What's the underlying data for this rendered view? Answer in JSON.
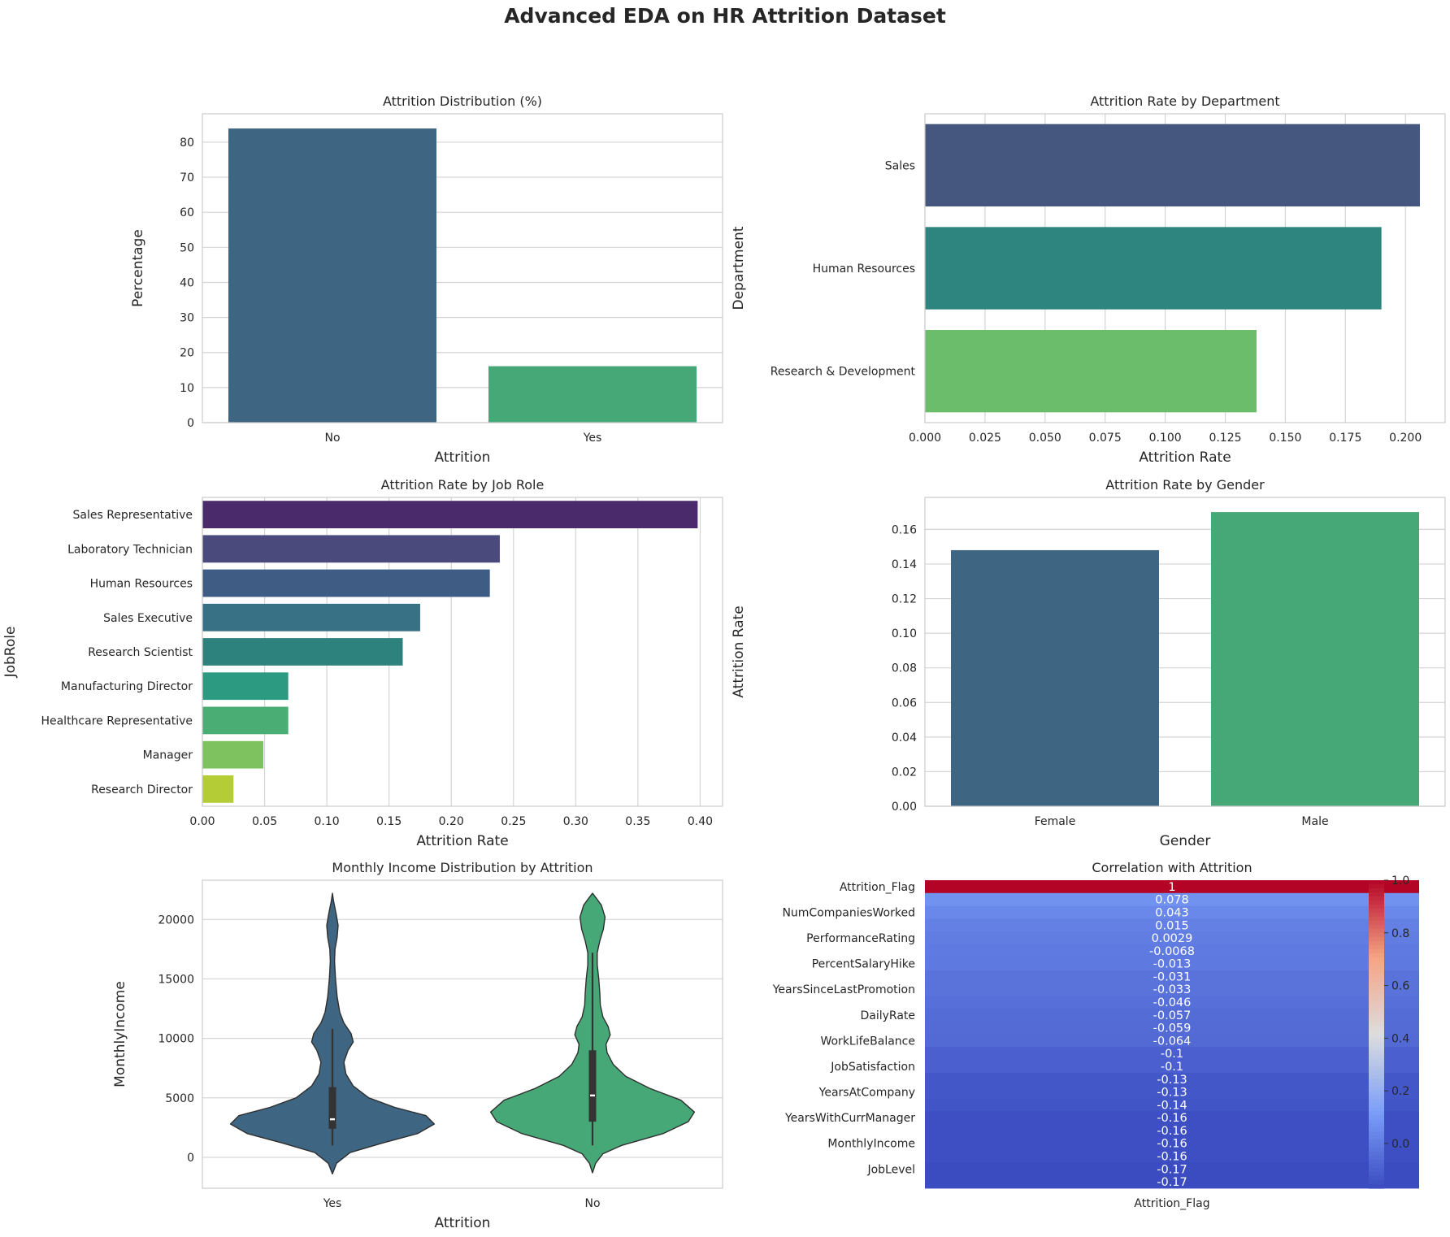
{
  "figure": {
    "title": "Advanced EDA on HR Attrition Dataset"
  },
  "chart_data": [
    {
      "id": "attrition-distribution",
      "type": "bar",
      "title": "Attrition Distribution (%)",
      "xlabel": "Attrition",
      "ylabel": "Percentage",
      "categories": [
        "No",
        "Yes"
      ],
      "values": [
        83.9,
        16.1
      ],
      "ylim": [
        0,
        88.1
      ],
      "yticks": [
        0,
        10,
        20,
        30,
        40,
        50,
        60,
        70,
        80
      ],
      "colors": [
        "#3e6581",
        "#46a876"
      ],
      "grid": true
    },
    {
      "id": "attrition-by-department",
      "type": "bar",
      "orientation": "horizontal",
      "title": "Attrition Rate by Department",
      "xlabel": "Attrition Rate",
      "ylabel": "Department",
      "categories": [
        "Sales",
        "Human Resources",
        "Research & Development"
      ],
      "values": [
        0.206,
        0.19,
        0.138
      ],
      "xlim": [
        0,
        0.2165
      ],
      "xticks": [
        0.0,
        0.025,
        0.05,
        0.075,
        0.1,
        0.125,
        0.15,
        0.175,
        0.2
      ],
      "tick_decimals": 3,
      "colors": [
        "#46577f",
        "#2e847e",
        "#6bbd6c"
      ],
      "grid": true
    },
    {
      "id": "attrition-by-job-role",
      "type": "bar",
      "orientation": "horizontal",
      "title": "Attrition Rate by Job Role",
      "xlabel": "Attrition Rate",
      "ylabel": "JobRole",
      "categories": [
        "Sales Representative",
        "Laboratory Technician",
        "Human Resources",
        "Sales Executive",
        "Research Scientist",
        "Manufacturing Director",
        "Healthcare Representative",
        "Manager",
        "Research Director"
      ],
      "values": [
        0.398,
        0.239,
        0.231,
        0.175,
        0.161,
        0.069,
        0.069,
        0.049,
        0.025
      ],
      "xlim": [
        0,
        0.418
      ],
      "xticks": [
        0.0,
        0.05,
        0.1,
        0.15,
        0.2,
        0.25,
        0.3,
        0.35,
        0.4
      ],
      "tick_decimals": 2,
      "colors": [
        "#4a2a6a",
        "#4a4a7d",
        "#3f5c84",
        "#387185",
        "#2e827e",
        "#2b9a80",
        "#4aad73",
        "#7dc25e",
        "#b4cc36"
      ],
      "grid": true
    },
    {
      "id": "attrition-by-gender",
      "type": "bar",
      "title": "Attrition Rate by Gender",
      "xlabel": "Gender",
      "ylabel": "Attrition Rate",
      "categories": [
        "Female",
        "Male"
      ],
      "values": [
        0.148,
        0.17
      ],
      "ylim": [
        0,
        0.1785
      ],
      "yticks": [
        0.0,
        0.02,
        0.04,
        0.06,
        0.08,
        0.1,
        0.12,
        0.14,
        0.16
      ],
      "tick_decimals": 2,
      "colors": [
        "#3e6581",
        "#46a876"
      ],
      "grid": true
    },
    {
      "id": "income-violin",
      "type": "violin",
      "title": "Monthly Income Distribution by Attrition",
      "xlabel": "Attrition",
      "ylabel": "MonthlyIncome",
      "categories": [
        "Yes",
        "No"
      ],
      "colors": [
        "#3e6581",
        "#46a876"
      ],
      "ylim": [
        -2600,
        23300
      ],
      "yticks": [
        0,
        5000,
        10000,
        15000,
        20000
      ],
      "violins": [
        {
          "name": "Yes",
          "profile": [
            [
              -1400,
              0
            ],
            [
              -500,
              0.04
            ],
            [
              400,
              0.17
            ],
            [
              1200,
              0.48
            ],
            [
              2000,
              0.82
            ],
            [
              2800,
              0.98
            ],
            [
              3500,
              0.9
            ],
            [
              4200,
              0.6
            ],
            [
              5000,
              0.35
            ],
            [
              6000,
              0.2
            ],
            [
              7000,
              0.13
            ],
            [
              8000,
              0.11
            ],
            [
              9000,
              0.15
            ],
            [
              9700,
              0.2
            ],
            [
              10400,
              0.18
            ],
            [
              11300,
              0.11
            ],
            [
              12200,
              0.07
            ],
            [
              13500,
              0.045
            ],
            [
              15000,
              0.03
            ],
            [
              16500,
              0.02
            ],
            [
              17500,
              0.025
            ],
            [
              18500,
              0.045
            ],
            [
              19500,
              0.055
            ],
            [
              20500,
              0.035
            ],
            [
              21500,
              0.012
            ],
            [
              22200,
              0
            ]
          ],
          "q1": 2400,
          "median": 3200,
          "q3": 5900,
          "whisker_low": 1000,
          "whisker_high": 10800
        },
        {
          "name": "No",
          "profile": [
            [
              -1300,
              0
            ],
            [
              -500,
              0.03
            ],
            [
              300,
              0.1
            ],
            [
              1000,
              0.28
            ],
            [
              2000,
              0.68
            ],
            [
              3000,
              0.92
            ],
            [
              3800,
              0.98
            ],
            [
              4800,
              0.85
            ],
            [
              5800,
              0.55
            ],
            [
              6800,
              0.32
            ],
            [
              7800,
              0.2
            ],
            [
              8800,
              0.14
            ],
            [
              9500,
              0.13
            ],
            [
              10300,
              0.17
            ],
            [
              11000,
              0.15
            ],
            [
              11800,
              0.1
            ],
            [
              12800,
              0.075
            ],
            [
              13800,
              0.07
            ],
            [
              15000,
              0.06
            ],
            [
              16200,
              0.045
            ],
            [
              17200,
              0.045
            ],
            [
              18200,
              0.07
            ],
            [
              19200,
              0.105
            ],
            [
              20200,
              0.12
            ],
            [
              21200,
              0.085
            ],
            [
              21800,
              0.035
            ],
            [
              22200,
              0
            ]
          ],
          "q1": 3000,
          "median": 5200,
          "q3": 9000,
          "whisker_low": 1000,
          "whisker_high": 17200
        }
      ],
      "grid": true
    },
    {
      "id": "correlation-heatmap",
      "type": "heatmap",
      "title": "Correlation with Attrition",
      "column": "Attrition_Flag",
      "row_labels": [
        "Attrition_Flag",
        "",
        "NumCompaniesWorked",
        "",
        "PerformanceRating",
        "",
        "PercentSalaryHike",
        "",
        "YearsSinceLastPromotion",
        "",
        "DailyRate",
        "",
        "WorkLifeBalance",
        "",
        "JobSatisfaction",
        "",
        "YearsAtCompany",
        "",
        "YearsWithCurrManager",
        "",
        "MonthlyIncome",
        "",
        "JobLevel",
        ""
      ],
      "annotations": [
        "1",
        "0.078",
        "0.043",
        "0.015",
        "0.0029",
        "-0.0068",
        "-0.013",
        "-0.031",
        "-0.033",
        "-0.046",
        "-0.057",
        "-0.059",
        "-0.064",
        "-0.1",
        "-0.1",
        "-0.13",
        "-0.13",
        "-0.14",
        "-0.16",
        "-0.16",
        "-0.16",
        "-0.16",
        "-0.17",
        "-0.17"
      ],
      "values": [
        1,
        0.078,
        0.043,
        0.015,
        0.0029,
        -0.0068,
        -0.013,
        -0.031,
        -0.033,
        -0.046,
        -0.057,
        -0.059,
        -0.064,
        -0.1,
        -0.1,
        -0.13,
        -0.13,
        -0.14,
        -0.16,
        -0.16,
        -0.16,
        -0.16,
        -0.17,
        -0.17
      ],
      "colormap": "coolwarm",
      "colorbar": {
        "ticks": [
          "1.0",
          "0.8",
          "0.6",
          "0.4",
          "0.2",
          "0.0"
        ],
        "tick_values": [
          1.0,
          0.8,
          0.6,
          0.4,
          0.2,
          0.0
        ],
        "range": [
          -0.17,
          1.0
        ]
      }
    }
  ]
}
